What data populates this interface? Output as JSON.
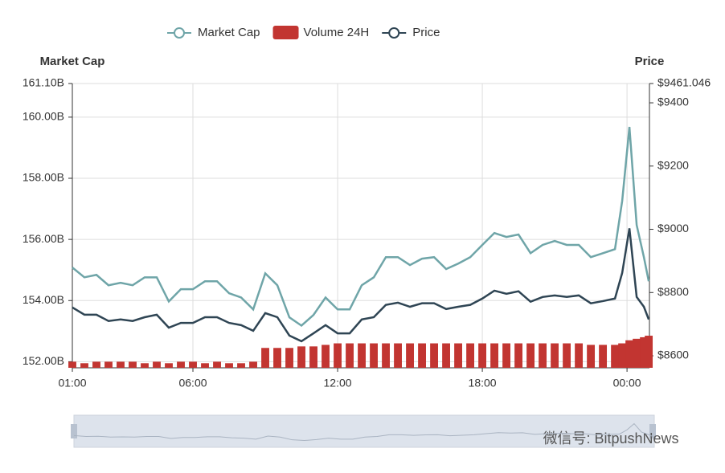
{
  "chart_data": {
    "type": "line",
    "y_axis_label": "Market Cap",
    "y2_axis_label": "Price",
    "watermark": "微信号: BitpushNews",
    "xlim": [
      1,
      24.93
    ],
    "xticks": [
      {
        "value": 1,
        "label": "01:00"
      },
      {
        "value": 6,
        "label": "06:00"
      },
      {
        "value": 12,
        "label": "12:00"
      },
      {
        "value": 18,
        "label": "18:00"
      },
      {
        "value": 24,
        "label": "00:00"
      }
    ],
    "ylim": [
      151.8,
      161.1
    ],
    "yticks": [
      {
        "value": 152,
        "label": "152.00B"
      },
      {
        "value": 154,
        "label": "154.00B"
      },
      {
        "value": 156,
        "label": "156.00B"
      },
      {
        "value": 158,
        "label": "158.00B"
      },
      {
        "value": 160,
        "label": "160.00B"
      },
      {
        "value": 161.1,
        "label": "161.10B"
      }
    ],
    "y2lim": [
      8562,
      9461.046
    ],
    "y2ticks": [
      {
        "value": 8600,
        "label": "$8600"
      },
      {
        "value": 8800,
        "label": "$8800"
      },
      {
        "value": 9000,
        "label": "$9000"
      },
      {
        "value": 9200,
        "label": "$9200"
      },
      {
        "value": 9400,
        "label": "$9400"
      },
      {
        "value": 9461.046,
        "label": "$9461.046"
      }
    ],
    "grid": true,
    "x": [
      1,
      1.5,
      2,
      2.5,
      3,
      3.5,
      4,
      4.5,
      5,
      5.5,
      6,
      6.5,
      7,
      7.5,
      8,
      8.5,
      9,
      9.5,
      10,
      10.5,
      11,
      11.5,
      12,
      12.5,
      13,
      13.5,
      14,
      14.5,
      15,
      15.5,
      16,
      16.5,
      17,
      17.5,
      18,
      18.5,
      19,
      19.5,
      20,
      20.5,
      21,
      21.5,
      22,
      22.5,
      23,
      23.5,
      23.8,
      24.1,
      24.4,
      24.7,
      24.9
    ],
    "series": [
      {
        "name": "Market Cap",
        "type": "line",
        "color": "#6fa5a8",
        "axis": "y",
        "values": [
          155.08,
          154.76,
          154.84,
          154.5,
          154.58,
          154.5,
          154.76,
          154.76,
          153.97,
          154.37,
          154.37,
          154.63,
          154.63,
          154.24,
          154.1,
          153.71,
          154.89,
          154.5,
          153.45,
          153.18,
          153.53,
          154.1,
          153.71,
          153.71,
          154.5,
          154.76,
          155.42,
          155.42,
          155.16,
          155.37,
          155.42,
          155.03,
          155.21,
          155.42,
          155.82,
          156.21,
          156.08,
          156.16,
          155.55,
          155.82,
          155.95,
          155.82,
          155.82,
          155.42,
          155.55,
          155.68,
          157.26,
          159.68,
          156.47,
          155.42,
          154.63
        ]
      },
      {
        "name": "Volume 24H",
        "type": "bar",
        "color": "#c23531",
        "axis": "y",
        "values": [
          152.0,
          151.95,
          152.0,
          152.0,
          152.0,
          152.0,
          151.95,
          152.0,
          151.95,
          152.0,
          152.0,
          151.95,
          152.0,
          151.95,
          151.95,
          152.0,
          152.45,
          152.45,
          152.45,
          152.5,
          152.5,
          152.55,
          152.6,
          152.6,
          152.6,
          152.6,
          152.6,
          152.6,
          152.6,
          152.6,
          152.6,
          152.6,
          152.6,
          152.6,
          152.6,
          152.6,
          152.6,
          152.6,
          152.6,
          152.6,
          152.6,
          152.6,
          152.6,
          152.55,
          152.55,
          152.55,
          152.6,
          152.7,
          152.75,
          152.8,
          152.85
        ]
      },
      {
        "name": "Price",
        "type": "line",
        "color": "#2f4554",
        "axis": "y2",
        "values": [
          8753,
          8730,
          8730,
          8710,
          8715,
          8710,
          8722,
          8730,
          8689,
          8704,
          8704,
          8722,
          8722,
          8704,
          8697,
          8679,
          8735,
          8722,
          8664,
          8646,
          8671,
          8697,
          8671,
          8671,
          8715,
          8722,
          8761,
          8768,
          8755,
          8766,
          8766,
          8748,
          8755,
          8761,
          8781,
          8806,
          8796,
          8804,
          8771,
          8786,
          8791,
          8786,
          8791,
          8766,
          8773,
          8781,
          8862,
          9003,
          8786,
          8755,
          8715
        ]
      }
    ]
  }
}
